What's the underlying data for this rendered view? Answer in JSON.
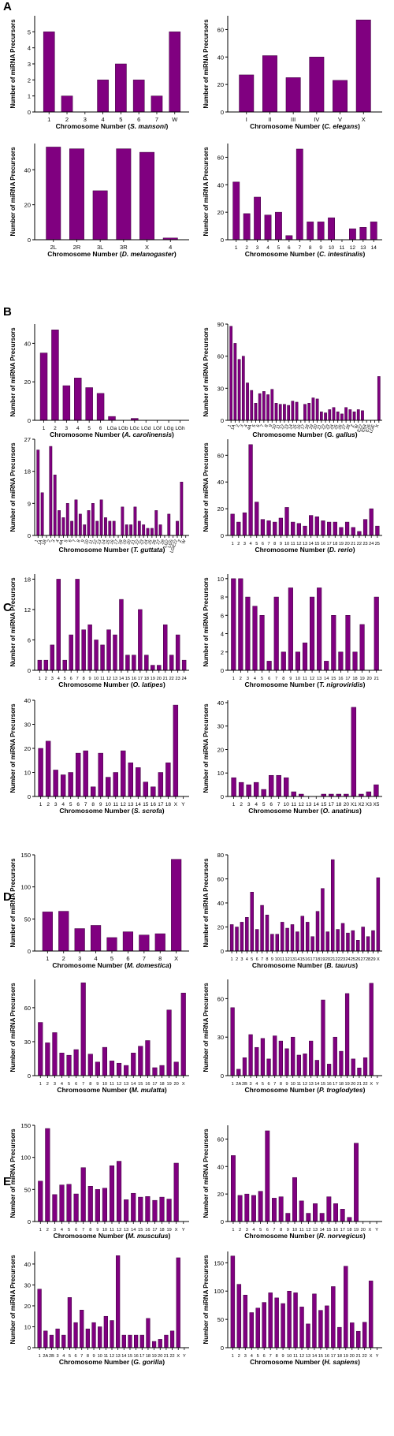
{
  "panel_labels": [
    "A",
    "B",
    "C",
    "D",
    "E"
  ],
  "colors": {
    "bar": "#800080",
    "bar_stroke": "#3a003a",
    "axis": "#000000"
  },
  "chart_data": [
    {
      "type": "bar",
      "panel": "A",
      "title": "",
      "xlabel_pre": "Chromosome Number (",
      "species": "S. mansoni",
      "xlabel_post": ")",
      "ylabel": "Number of miRNA Precursors",
      "categories": [
        "1",
        "2",
        "3",
        "4",
        "5",
        "6",
        "7",
        "W"
      ],
      "values": [
        5,
        1,
        0,
        2,
        3,
        2,
        1,
        5
      ],
      "ylim": [
        0,
        6
      ],
      "yticks": [
        0,
        1,
        2,
        3,
        4,
        5
      ],
      "tick_every": 1
    },
    {
      "type": "bar",
      "panel": "A",
      "title": "",
      "xlabel_pre": "Chromosome Number (",
      "species": "C. elegans",
      "xlabel_post": ")",
      "ylabel": "Number of miRNA Precursors",
      "categories": [
        "I",
        "II",
        "III",
        "IV",
        "V",
        "X"
      ],
      "values": [
        27,
        41,
        25,
        40,
        23,
        67
      ],
      "ylim": [
        0,
        70
      ],
      "yticks": [
        0,
        20,
        40,
        60
      ],
      "tick_every": 1
    },
    {
      "type": "bar",
      "panel": "A",
      "title": "",
      "xlabel_pre": "Chromosome Number (",
      "species": "D. melanogaster",
      "xlabel_post": ")",
      "ylabel": "Number of miRNA Precursors",
      "categories": [
        "2L",
        "2R",
        "3L",
        "3R",
        "X",
        "4"
      ],
      "values": [
        53,
        52,
        28,
        52,
        50,
        1
      ],
      "ylim": [
        0,
        55
      ],
      "yticks": [
        0,
        20,
        40
      ],
      "tick_every": 1
    },
    {
      "type": "bar",
      "panel": "A",
      "title": "",
      "xlabel_pre": "Chromosome Number (",
      "species": "C. intestinalis",
      "xlabel_post": ")",
      "ylabel": "Number of miRNA Precursors",
      "categories": [
        "1",
        "2",
        "3",
        "4",
        "5",
        "6",
        "7",
        "8",
        "9",
        "10",
        "11",
        "12",
        "13",
        "14"
      ],
      "values": [
        42,
        19,
        31,
        18,
        20,
        3,
        66,
        13,
        13,
        16,
        0,
        8,
        9,
        13
      ],
      "ylim": [
        0,
        70
      ],
      "yticks": [
        0,
        20,
        40,
        60
      ],
      "tick_every": 1
    },
    {
      "type": "bar",
      "panel": "B",
      "title": "",
      "xlabel_pre": "Chromosome Number (",
      "species": "A. carolinensis",
      "xlabel_post": ")",
      "ylabel": "Number of miRNA Precursors",
      "categories": [
        "1",
        "2",
        "3",
        "4",
        "5",
        "6",
        "LGa",
        "LGb",
        "LGc",
        "LGd",
        "LGf",
        "LGg",
        "LGh"
      ],
      "values": [
        35,
        47,
        18,
        22,
        17,
        14,
        2,
        0,
        1,
        0,
        0,
        0,
        0
      ],
      "ylim": [
        0,
        50
      ],
      "yticks": [
        0,
        20,
        40
      ],
      "tick_every": 1
    },
    {
      "type": "bar",
      "panel": "B",
      "title": "",
      "xlabel_pre": "Chromosome Number (",
      "species": "G. gallus",
      "xlabel_post": ")",
      "ylabel": "Number of miRNA Precursors",
      "categories": [
        "1",
        "1A",
        "2",
        "3",
        "4",
        "4A",
        "5",
        "6",
        "7",
        "8",
        "9",
        "10",
        "11",
        "12",
        "13",
        "14",
        "15",
        "16",
        "17",
        "18",
        "19",
        "20",
        "21",
        "22",
        "23",
        "24",
        "25",
        "26",
        "27",
        "28",
        "Z",
        "W",
        "E22",
        "E64",
        "E26",
        "LGE",
        "X"
      ],
      "values": [
        88,
        72,
        57,
        60,
        35,
        28,
        16,
        25,
        27,
        24,
        29,
        16,
        15,
        15,
        14,
        18,
        17,
        0,
        15,
        16,
        21,
        20,
        8,
        7,
        10,
        12,
        8,
        6,
        12,
        10,
        8,
        10,
        9,
        0,
        0,
        0,
        41
      ],
      "ylim": [
        0,
        90
      ],
      "yticks": [
        0,
        30,
        60,
        90
      ],
      "tick_every": 1
    },
    {
      "type": "bar",
      "panel": "B",
      "title": "",
      "xlabel_pre": "Chromosome Number (",
      "species": "T. guttata",
      "xlabel_post": ")",
      "ylabel": "Number of miRNA Precursors",
      "categories": [
        "1",
        "1A",
        "1B",
        "2",
        "3",
        "4",
        "4A",
        "5",
        "6",
        "7",
        "8",
        "9",
        "10",
        "11",
        "12",
        "13",
        "14",
        "15",
        "16",
        "17",
        "18",
        "19",
        "20",
        "21",
        "22",
        "23",
        "24",
        "25",
        "26",
        "27",
        "28",
        "LG2",
        "LG5",
        "LGE22",
        "Z",
        "W"
      ],
      "values": [
        24,
        12,
        0,
        25,
        17,
        7,
        5,
        9,
        4,
        10,
        6,
        3,
        7,
        9,
        4,
        10,
        5,
        4,
        4,
        0,
        8,
        3,
        3,
        8,
        4,
        3,
        2,
        2,
        7,
        3,
        0,
        6,
        0,
        4,
        15,
        0
      ],
      "ylim": [
        0,
        27
      ],
      "yticks": [
        0,
        9,
        18,
        27
      ],
      "tick_every": 1
    },
    {
      "type": "bar",
      "panel": "B",
      "title": "",
      "xlabel_pre": "Chromosome Number (",
      "species": "D. rerio",
      "xlabel_post": ")",
      "ylabel": "Number of miRNA Precursors",
      "categories": [
        "1",
        "2",
        "3",
        "4",
        "5",
        "6",
        "7",
        "8",
        "9",
        "10",
        "11",
        "12",
        "13",
        "14",
        "15",
        "16",
        "17",
        "18",
        "19",
        "20",
        "21",
        "22",
        "23",
        "24",
        "25"
      ],
      "values": [
        16,
        10,
        17,
        68,
        25,
        12,
        11,
        10,
        13,
        21,
        10,
        9,
        7,
        15,
        14,
        11,
        10,
        10,
        6,
        10,
        6,
        3,
        12,
        20,
        7
      ],
      "ylim": [
        0,
        72
      ],
      "yticks": [
        0,
        20,
        40,
        60
      ],
      "tick_every": 1
    },
    {
      "type": "bar",
      "panel": "C",
      "title": "",
      "xlabel_pre": "Chromosome Number (",
      "species": "O. latipes",
      "xlabel_post": ")",
      "ylabel": "Number of miRNA Precursors",
      "categories": [
        "1",
        "2",
        "3",
        "4",
        "5",
        "6",
        "7",
        "8",
        "9",
        "10",
        "11",
        "12",
        "13",
        "14",
        "15",
        "16",
        "17",
        "18",
        "19",
        "20",
        "21",
        "22",
        "23",
        "24"
      ],
      "values": [
        2,
        2,
        5,
        18,
        2,
        7,
        18,
        8,
        9,
        6,
        5,
        8,
        7,
        14,
        3,
        3,
        12,
        3,
        1,
        1,
        9,
        3,
        7,
        2
      ],
      "ylim": [
        0,
        19
      ],
      "yticks": [
        0,
        6,
        12,
        18
      ],
      "tick_every": 1
    },
    {
      "type": "bar",
      "panel": "C",
      "title": "",
      "xlabel_pre": "Chromosome Number (",
      "species": "T. nigroviridis",
      "xlabel_post": ")",
      "ylabel": "Number of miRNA Precursors",
      "categories": [
        "1",
        "2",
        "3",
        "4",
        "5",
        "6",
        "7",
        "8",
        "9",
        "10",
        "11",
        "12",
        "13",
        "14",
        "15",
        "16",
        "17",
        "18",
        "19",
        "20",
        "21"
      ],
      "values": [
        10,
        10,
        8,
        7,
        6,
        1,
        8,
        2,
        9,
        2,
        3,
        8,
        9,
        1,
        6,
        2,
        6,
        2,
        5,
        0,
        8
      ],
      "ylim": [
        0,
        10.5
      ],
      "yticks": [
        0,
        2,
        4,
        6,
        8,
        10
      ],
      "tick_every": 1
    },
    {
      "type": "bar",
      "panel": "C",
      "title": "",
      "xlabel_pre": "Chromosome Number (",
      "species": "S. scrofa",
      "xlabel_post": ")",
      "ylabel": "Number of miRNA Precursors",
      "categories": [
        "1",
        "2",
        "3",
        "4",
        "5",
        "6",
        "7",
        "8",
        "9",
        "10",
        "11",
        "12",
        "13",
        "14",
        "15",
        "16",
        "17",
        "18",
        "X",
        "Y"
      ],
      "values": [
        20,
        23,
        11,
        9,
        10,
        18,
        19,
        4,
        18,
        8,
        10,
        19,
        14,
        12,
        6,
        4,
        10,
        14,
        38,
        0
      ],
      "ylim": [
        0,
        40
      ],
      "yticks": [
        0,
        10,
        20,
        30,
        40
      ],
      "tick_every": 1
    },
    {
      "type": "bar",
      "panel": "C",
      "title": "",
      "xlabel_pre": "Chromosome Number (",
      "species": "O. anatinus",
      "xlabel_post": ")",
      "ylabel": "Number of miRNA Precursors",
      "categories": [
        "1",
        "2",
        "3",
        "4",
        "5",
        "6",
        "7",
        "10",
        "11",
        "12",
        "13",
        "14",
        "15",
        "17",
        "18",
        "20",
        "X1",
        "X2",
        "X3",
        "X5"
      ],
      "values": [
        8,
        6,
        5,
        6,
        3,
        9,
        9,
        8,
        2,
        1,
        0,
        0,
        1,
        1,
        1,
        1,
        38,
        1,
        2,
        5
      ],
      "ylim": [
        0,
        41
      ],
      "yticks": [
        0,
        10,
        20,
        30,
        40
      ],
      "tick_every": 1
    },
    {
      "type": "bar",
      "panel": "D",
      "title": "",
      "xlabel_pre": "Chromosome Number (",
      "species": "M. domestica",
      "xlabel_post": ")",
      "ylabel": "Number of miRNA Precursors",
      "categories": [
        "1",
        "2",
        "3",
        "4",
        "5",
        "6",
        "7",
        "8",
        "X"
      ],
      "values": [
        61,
        62,
        35,
        40,
        21,
        30,
        25,
        27,
        143
      ],
      "ylim": [
        0,
        150
      ],
      "yticks": [
        0,
        50,
        100,
        150
      ],
      "tick_every": 1
    },
    {
      "type": "bar",
      "panel": "D",
      "title": "",
      "xlabel_pre": "Chromosome Number (",
      "species": "B. taurus",
      "xlabel_post": ")",
      "ylabel": "Number of miRNA Precursors",
      "categories": [
        "1",
        "2",
        "3",
        "4",
        "5",
        "6",
        "7",
        "8",
        "9",
        "10",
        "11",
        "12",
        "13",
        "14",
        "15",
        "16",
        "17",
        "18",
        "19",
        "20",
        "21",
        "22",
        "23",
        "24",
        "25",
        "26",
        "27",
        "28",
        "29",
        "X"
      ],
      "values": [
        22,
        20,
        24,
        28,
        49,
        18,
        38,
        30,
        14,
        14,
        24,
        19,
        22,
        16,
        29,
        24,
        12,
        33,
        52,
        16,
        76,
        18,
        23,
        15,
        17,
        9,
        20,
        12,
        17,
        61
      ],
      "ylim": [
        0,
        80
      ],
      "yticks": [
        0,
        20,
        40,
        60,
        80
      ],
      "tick_every": 1
    },
    {
      "type": "bar",
      "panel": "D",
      "title": "",
      "xlabel_pre": "Chromosome Number (",
      "species": "M. mulatta",
      "xlabel_post": ")",
      "ylabel": "Number of miRNA Precursors",
      "categories": [
        "1",
        "2",
        "3",
        "4",
        "5",
        "6",
        "7",
        "8",
        "9",
        "10",
        "11",
        "12",
        "13",
        "14",
        "15",
        "16",
        "17",
        "18",
        "19",
        "20",
        "X"
      ],
      "values": [
        47,
        29,
        38,
        20,
        18,
        23,
        82,
        19,
        12,
        25,
        13,
        11,
        9,
        20,
        26,
        31,
        7,
        9,
        58,
        12,
        73
      ],
      "ylim": [
        0,
        85
      ],
      "yticks": [
        0,
        30,
        60
      ],
      "tick_every": 1
    },
    {
      "type": "bar",
      "panel": "D",
      "title": "",
      "xlabel_pre": "Chromosome Number (",
      "species": "P. troglodytes",
      "xlabel_post": ")",
      "ylabel": "Number of miRNA Precursors",
      "categories": [
        "1",
        "2A",
        "2B",
        "3",
        "4",
        "5",
        "6",
        "7",
        "8",
        "9",
        "10",
        "11",
        "12",
        "13",
        "14",
        "15",
        "16",
        "17",
        "18",
        "19",
        "20",
        "21",
        "22",
        "X",
        "Y"
      ],
      "values": [
        53,
        5,
        14,
        32,
        22,
        29,
        13,
        31,
        27,
        21,
        30,
        16,
        17,
        27,
        12,
        59,
        9,
        30,
        19,
        64,
        13,
        6,
        14,
        72,
        0
      ],
      "ylim": [
        0,
        75
      ],
      "yticks": [
        0,
        30,
        60
      ],
      "tick_every": 1
    },
    {
      "type": "bar",
      "panel": "E",
      "title": "",
      "xlabel_pre": "Chromosome Number (",
      "species": "M. musculus",
      "xlabel_post": ")",
      "ylabel": "Number of miRNA Precursors",
      "categories": [
        "1",
        "2",
        "3",
        "4",
        "5",
        "6",
        "7",
        "8",
        "9",
        "10",
        "11",
        "12",
        "13",
        "14",
        "15",
        "16",
        "17",
        "18",
        "19",
        "X",
        "Y"
      ],
      "values": [
        63,
        145,
        42,
        57,
        58,
        43,
        84,
        55,
        50,
        52,
        87,
        94,
        34,
        44,
        38,
        39,
        33,
        38,
        35,
        91,
        0
      ],
      "ylim": [
        0,
        150
      ],
      "yticks": [
        0,
        50,
        100,
        150
      ],
      "tick_every": 1
    },
    {
      "type": "bar",
      "panel": "E",
      "title": "",
      "xlabel_pre": "Chromosome Number (",
      "species": "R. norvegicus",
      "xlabel_post": ")",
      "ylabel": "Number of miRNA Precursors",
      "categories": [
        "1",
        "2",
        "3",
        "4",
        "5",
        "6",
        "7",
        "8",
        "9",
        "10",
        "11",
        "12",
        "13",
        "14",
        "15",
        "16",
        "17",
        "18",
        "19",
        "20",
        "X",
        "Y"
      ],
      "values": [
        48,
        19,
        20,
        19,
        22,
        66,
        17,
        18,
        6,
        32,
        15,
        6,
        13,
        6,
        18,
        13,
        9,
        3,
        57,
        0,
        0,
        0
      ],
      "ylim": [
        0,
        70
      ],
      "yticks": [
        0,
        20,
        40,
        60
      ],
      "tick_every": 1
    },
    {
      "type": "bar",
      "panel": "E",
      "title": "",
      "xlabel_pre": "Chromosome Number (",
      "species": "G. gorilla",
      "xlabel_post": ")",
      "ylabel": "Number of miRNA Precursors",
      "categories": [
        "1",
        "2A",
        "2B",
        "3",
        "4",
        "5",
        "6",
        "7",
        "8",
        "9",
        "10",
        "11",
        "12",
        "13",
        "14",
        "15",
        "16",
        "17",
        "18",
        "19",
        "20",
        "21",
        "22",
        "X",
        "Y"
      ],
      "values": [
        28,
        8,
        6,
        9,
        6,
        24,
        12,
        18,
        9,
        12,
        10,
        15,
        13,
        44,
        6,
        6,
        6,
        6,
        14,
        3,
        4,
        6,
        8,
        43,
        0
      ],
      "ylim": [
        0,
        46
      ],
      "yticks": [
        0,
        10,
        20,
        30,
        40
      ],
      "tick_every": 1
    },
    {
      "type": "bar",
      "panel": "E",
      "title": "",
      "xlabel_pre": "Chromosome Number (",
      "species": "H. sapiens",
      "xlabel_post": ")",
      "ylabel": "Number of miRNA Precursors",
      "categories": [
        "1",
        "2",
        "3",
        "4",
        "5",
        "6",
        "7",
        "8",
        "9",
        "10",
        "11",
        "12",
        "13",
        "14",
        "15",
        "16",
        "17",
        "18",
        "19",
        "20",
        "21",
        "22",
        "X",
        "Y"
      ],
      "values": [
        162,
        112,
        93,
        62,
        70,
        80,
        97,
        88,
        78,
        100,
        97,
        72,
        42,
        95,
        66,
        74,
        108,
        36,
        144,
        44,
        29,
        45,
        118,
        0
      ],
      "ylim": [
        0,
        170
      ],
      "yticks": [
        0,
        50,
        100,
        150
      ],
      "tick_every": 1
    }
  ]
}
